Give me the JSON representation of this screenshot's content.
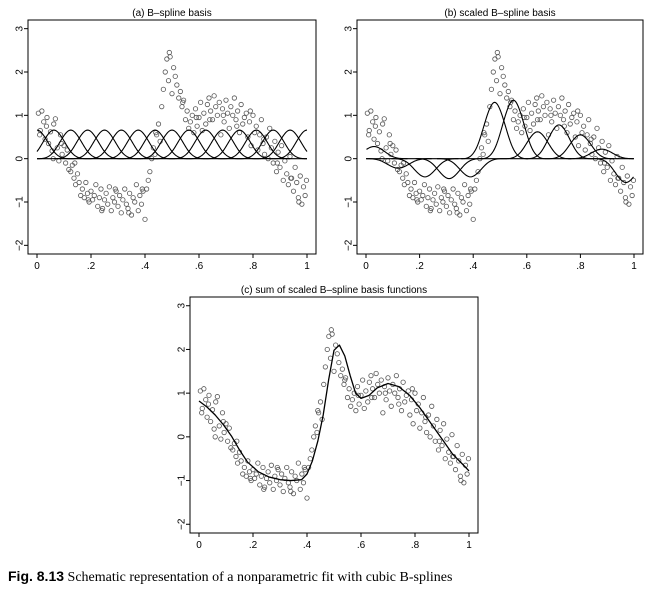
{
  "caption": {
    "label": "Fig. 8.13",
    "text": "Schematic representation of a nonparametric fit with cubic B-splines"
  },
  "chart_data": [
    {
      "type": "scatter",
      "title": "(a) B–spline basis",
      "xlim": [
        0,
        1
      ],
      "ylim": [
        -2.2,
        3.2
      ],
      "x_ticks": [
        0,
        0.2,
        0.4,
        0.6,
        0.8,
        1
      ],
      "x_tick_labels": [
        "0",
        ".2",
        ".4",
        ".6",
        ".8",
        "1"
      ],
      "y_ticks": [
        -2,
        -1,
        0,
        1,
        2,
        3
      ],
      "y_tick_labels": [
        "−2",
        "−1",
        "0",
        "1",
        "2",
        "3"
      ],
      "curves": "basis",
      "basis_peak": 0.66,
      "knots": [
        0,
        0.0625,
        0.125,
        0.1875,
        0.25,
        0.3125,
        0.375,
        0.4375,
        0.5,
        0.5625,
        0.625,
        0.6875,
        0.75,
        0.8125,
        0.875,
        0.9375,
        1
      ]
    },
    {
      "type": "scatter",
      "title": "(b) scaled B–spline basis",
      "xlim": [
        0,
        1
      ],
      "ylim": [
        -2.2,
        3.2
      ],
      "x_ticks": [
        0,
        0.2,
        0.4,
        0.6,
        0.8,
        1
      ],
      "x_tick_labels": [
        "0",
        ".2",
        ".4",
        ".6",
        ".8",
        "1"
      ],
      "y_ticks": [
        -2,
        -1,
        0,
        1,
        2,
        3
      ],
      "y_tick_labels": [
        "−2",
        "−1",
        "0",
        "1",
        "2",
        "3"
      ],
      "curves": "scaled",
      "scaled_bumps": [
        {
          "center": 0.03,
          "height": 0.28
        },
        {
          "center": 0.12,
          "height": -0.22
        },
        {
          "center": 0.22,
          "height": -0.42
        },
        {
          "center": 0.31,
          "height": -0.46
        },
        {
          "center": 0.39,
          "height": -0.42
        },
        {
          "center": 0.48,
          "height": 1.3
        },
        {
          "center": 0.55,
          "height": 1.35
        },
        {
          "center": 0.64,
          "height": 0.62
        },
        {
          "center": 0.72,
          "height": 0.78
        },
        {
          "center": 0.8,
          "height": 0.55
        },
        {
          "center": 0.88,
          "height": 0.22
        },
        {
          "center": 0.97,
          "height": -0.55
        }
      ]
    },
    {
      "type": "scatter",
      "title": "(c) sum of scaled B–spline basis functions",
      "xlim": [
        0,
        1
      ],
      "ylim": [
        -2.2,
        3.2
      ],
      "x_ticks": [
        0,
        0.2,
        0.4,
        0.6,
        0.8,
        1
      ],
      "x_tick_labels": [
        "0",
        ".2",
        ".4",
        ".6",
        ".8",
        "1"
      ],
      "y_ticks": [
        -2,
        -1,
        0,
        1,
        2,
        3
      ],
      "y_tick_labels": [
        "−2",
        "−1",
        "0",
        "1",
        "2",
        "3"
      ],
      "curves": "fit"
    }
  ],
  "fit_curve": {
    "x": [
      0,
      0.03,
      0.06,
      0.09,
      0.12,
      0.15,
      0.18,
      0.22,
      0.26,
      0.3,
      0.34,
      0.38,
      0.4,
      0.42,
      0.44,
      0.46,
      0.48,
      0.5,
      0.52,
      0.54,
      0.56,
      0.58,
      0.6,
      0.63,
      0.66,
      0.7,
      0.74,
      0.78,
      0.82,
      0.86,
      0.9,
      0.94,
      0.98,
      1
    ],
    "y": [
      0.82,
      0.68,
      0.5,
      0.28,
      0.02,
      -0.3,
      -0.58,
      -0.8,
      -0.92,
      -0.98,
      -1.0,
      -0.98,
      -0.85,
      -0.55,
      -0.1,
      0.5,
      1.3,
      1.98,
      2.1,
      1.85,
      1.4,
      1.0,
      0.88,
      0.95,
      1.12,
      1.22,
      1.15,
      0.95,
      0.65,
      0.3,
      -0.05,
      -0.4,
      -0.65,
      -0.78
    ]
  },
  "scatter_points": {
    "x": [
      0.005,
      0.012,
      0.018,
      0.025,
      0.03,
      0.037,
      0.043,
      0.05,
      0.056,
      0.062,
      0.068,
      0.075,
      0.081,
      0.087,
      0.093,
      0.1,
      0.106,
      0.112,
      0.118,
      0.125,
      0.131,
      0.137,
      0.143,
      0.15,
      0.156,
      0.162,
      0.168,
      0.175,
      0.181,
      0.187,
      0.193,
      0.2,
      0.206,
      0.212,
      0.218,
      0.225,
      0.231,
      0.237,
      0.243,
      0.25,
      0.256,
      0.262,
      0.268,
      0.275,
      0.281,
      0.287,
      0.293,
      0.3,
      0.306,
      0.312,
      0.318,
      0.325,
      0.331,
      0.337,
      0.343,
      0.35,
      0.356,
      0.362,
      0.368,
      0.375,
      0.381,
      0.387,
      0.393,
      0.4,
      0.406,
      0.412,
      0.418,
      0.425,
      0.431,
      0.437,
      0.443,
      0.45,
      0.456,
      0.462,
      0.468,
      0.475,
      0.481,
      0.487,
      0.493,
      0.5,
      0.506,
      0.512,
      0.518,
      0.525,
      0.531,
      0.537,
      0.543,
      0.55,
      0.556,
      0.562,
      0.568,
      0.575,
      0.581,
      0.587,
      0.593,
      0.6,
      0.606,
      0.612,
      0.618,
      0.625,
      0.631,
      0.637,
      0.643,
      0.65,
      0.656,
      0.662,
      0.668,
      0.675,
      0.681,
      0.687,
      0.693,
      0.7,
      0.706,
      0.712,
      0.718,
      0.725,
      0.731,
      0.737,
      0.743,
      0.75,
      0.756,
      0.762,
      0.768,
      0.775,
      0.781,
      0.787,
      0.793,
      0.8,
      0.806,
      0.812,
      0.818,
      0.825,
      0.831,
      0.837,
      0.843,
      0.85,
      0.856,
      0.862,
      0.868,
      0.875,
      0.881,
      0.887,
      0.893,
      0.9,
      0.906,
      0.912,
      0.918,
      0.925,
      0.931,
      0.937,
      0.943,
      0.95,
      0.956,
      0.962,
      0.968,
      0.975,
      0.981,
      0.987,
      0.993,
      0.998,
      0.01,
      0.035,
      0.06,
      0.09,
      0.14,
      0.19,
      0.24,
      0.29,
      0.34,
      0.39,
      0.44,
      0.49,
      0.54,
      0.59,
      0.64,
      0.69,
      0.74,
      0.79,
      0.84,
      0.89,
      0.94,
      0.97
    ],
    "y": [
      1.05,
      0.65,
      1.1,
      0.85,
      0.45,
      0.95,
      0.35,
      0.62,
      0.18,
      0.8,
      0.92,
      0.25,
      -0.05,
      0.55,
      0.1,
      0.3,
      -0.1,
      0.2,
      -0.25,
      -0.3,
      -0.15,
      -0.45,
      -0.6,
      -0.35,
      -0.55,
      -0.85,
      -0.7,
      -0.9,
      -0.55,
      -0.8,
      -1.0,
      -0.75,
      -0.95,
      -0.85,
      -0.6,
      -1.1,
      -0.9,
      -0.7,
      -1.15,
      -0.95,
      -0.8,
      -1.05,
      -0.65,
      -1.2,
      -0.9,
      -1.0,
      -0.75,
      -1.1,
      -0.85,
      -1.25,
      -0.95,
      -0.7,
      -1.05,
      -1.15,
      -0.8,
      -1.3,
      -0.9,
      -1.0,
      -0.6,
      -1.2,
      -0.85,
      -1.05,
      -0.75,
      -1.4,
      -0.7,
      -0.5,
      -0.3,
      0.0,
      0.25,
      0.1,
      0.55,
      0.8,
      0.4,
      1.2,
      1.6,
      2.0,
      2.3,
      1.8,
      2.35,
      1.5,
      2.1,
      1.9,
      1.7,
      1.4,
      1.55,
      1.2,
      1.35,
      0.9,
      1.1,
      0.7,
      0.85,
      1.0,
      0.6,
      1.15,
      0.75,
      0.95,
      1.3,
      0.65,
      1.05,
      0.8,
      1.25,
      1.4,
      1.1,
      0.9,
      1.45,
      1.2,
      1.0,
      1.3,
      0.55,
      1.15,
      0.85,
      1.35,
      1.05,
      0.7,
      1.2,
      1.0,
      1.4,
      0.9,
      1.1,
      0.6,
      1.25,
      0.8,
      0.95,
      1.05,
      0.5,
      0.85,
      0.3,
      1.0,
      0.6,
      0.75,
      0.2,
      0.55,
      0.9,
      0.35,
      0.1,
      0.5,
      0.0,
      0.7,
      0.25,
      -0.1,
      0.4,
      -0.3,
      0.15,
      -0.2,
      0.3,
      -0.5,
      -0.05,
      -0.35,
      -0.6,
      0.05,
      -0.45,
      -0.75,
      -0.2,
      -0.55,
      -0.9,
      -0.4,
      -1.05,
      -0.65,
      -0.85,
      -0.5,
      0.55,
      0.75,
      0.0,
      0.35,
      -0.1,
      -0.95,
      -1.2,
      -0.7,
      -1.25,
      -0.7,
      0.6,
      2.45,
      1.3,
      0.95,
      0.9,
      1.0,
      0.75,
      1.1,
      0.45,
      -0.1,
      -0.45,
      -1.0
    ]
  }
}
